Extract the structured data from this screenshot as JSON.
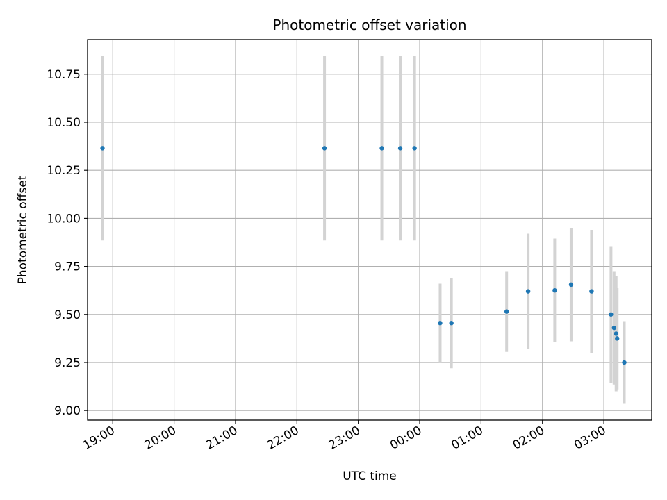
{
  "chart_data": {
    "type": "scatter",
    "title": "Photometric offset variation",
    "xlabel": "UTC time",
    "ylabel": "Photometric offset",
    "grid": true,
    "x_tick_labels": [
      "19:00",
      "20:00",
      "21:00",
      "22:00",
      "23:00",
      "00:00",
      "01:00",
      "02:00",
      "03:00"
    ],
    "x_tick_hours": [
      19,
      20,
      21,
      22,
      23,
      24,
      25,
      26,
      27
    ],
    "xlim_hours": [
      18.59,
      27.78
    ],
    "y_ticks": [
      9.0,
      9.25,
      9.5,
      9.75,
      10.0,
      10.25,
      10.5,
      10.75
    ],
    "y_tick_labels": [
      "9.00",
      "9.25",
      "9.50",
      "9.75",
      "10.00",
      "10.25",
      "10.50",
      "10.75"
    ],
    "ylim": [
      8.95,
      10.93
    ],
    "colors": {
      "point": "#1f77b4",
      "errorbar": "#d3d3d3",
      "grid": "#b0b0b0"
    },
    "points": [
      {
        "time": "18:50",
        "y": 10.365,
        "err": 0.48
      },
      {
        "time": "22:27",
        "y": 10.365,
        "err": 0.48
      },
      {
        "time": "23:23",
        "y": 10.365,
        "err": 0.48
      },
      {
        "time": "23:41",
        "y": 10.365,
        "err": 0.48
      },
      {
        "time": "23:55",
        "y": 10.365,
        "err": 0.48
      },
      {
        "time": "00:20",
        "y": 9.455,
        "err": 0.205
      },
      {
        "time": "00:31",
        "y": 9.455,
        "err": 0.235
      },
      {
        "time": "01:25",
        "y": 9.515,
        "err": 0.21
      },
      {
        "time": "01:46",
        "y": 9.62,
        "err": 0.3
      },
      {
        "time": "02:12",
        "y": 9.625,
        "err": 0.27
      },
      {
        "time": "02:28",
        "y": 9.655,
        "err": 0.295
      },
      {
        "time": "02:48",
        "y": 9.62,
        "err": 0.32
      },
      {
        "time": "03:07",
        "y": 9.5,
        "err": 0.355
      },
      {
        "time": "03:10",
        "y": 9.43,
        "err": 0.295
      },
      {
        "time": "03:12",
        "y": 9.4,
        "err": 0.3
      },
      {
        "time": "03:13",
        "y": 9.375,
        "err": 0.265
      },
      {
        "time": "03:20",
        "y": 9.25,
        "err": 0.215
      }
    ]
  }
}
